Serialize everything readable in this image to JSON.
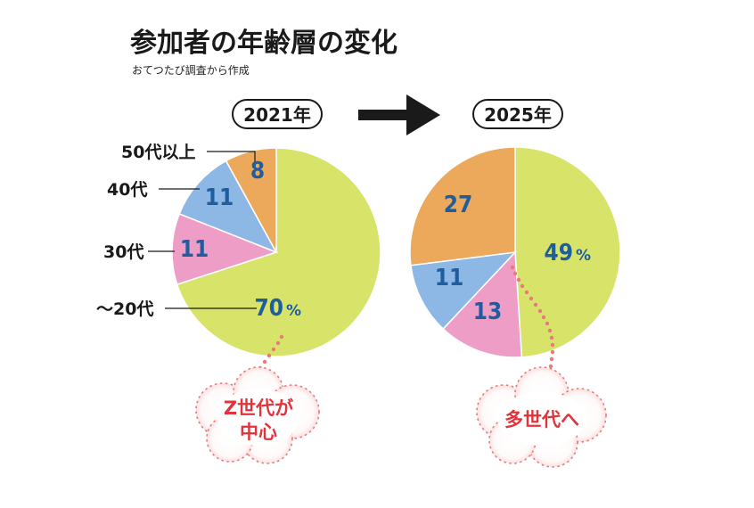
{
  "title": "参加者の年齢層の変化",
  "subtitle": "おてつたび調査から作成",
  "charts": [
    {
      "year_label": "2021年"
    },
    {
      "year_label": "2025年"
    }
  ],
  "age_labels": [
    "〜20代",
    "30代",
    "40代",
    "50代以上"
  ],
  "callouts": [
    {
      "lines": [
        "Z世代が",
        "中心"
      ]
    },
    {
      "lines": [
        "多世代へ"
      ]
    }
  ],
  "colors": {
    "under20": "#d8e36a",
    "thirties": "#ee9ec6",
    "forties": "#8db8e6",
    "fifties_plus": "#eca95c",
    "value_text": "#1f5e9e",
    "callout_text": "#e0343c",
    "dots": "#e77b7b"
  },
  "chart_data": [
    {
      "type": "pie",
      "title": "2021年",
      "unit": "%",
      "categories": [
        "〜20代",
        "30代",
        "40代",
        "50代以上"
      ],
      "values": [
        70,
        11,
        11,
        8
      ],
      "colors": [
        "#d8e36a",
        "#ee9ec6",
        "#8db8e6",
        "#eca95c"
      ]
    },
    {
      "type": "pie",
      "title": "2025年",
      "unit": "%",
      "categories": [
        "〜20代",
        "30代",
        "40代",
        "50代以上"
      ],
      "values": [
        49,
        13,
        11,
        27
      ],
      "colors": [
        "#d8e36a",
        "#ee9ec6",
        "#8db8e6",
        "#eca95c"
      ]
    }
  ]
}
